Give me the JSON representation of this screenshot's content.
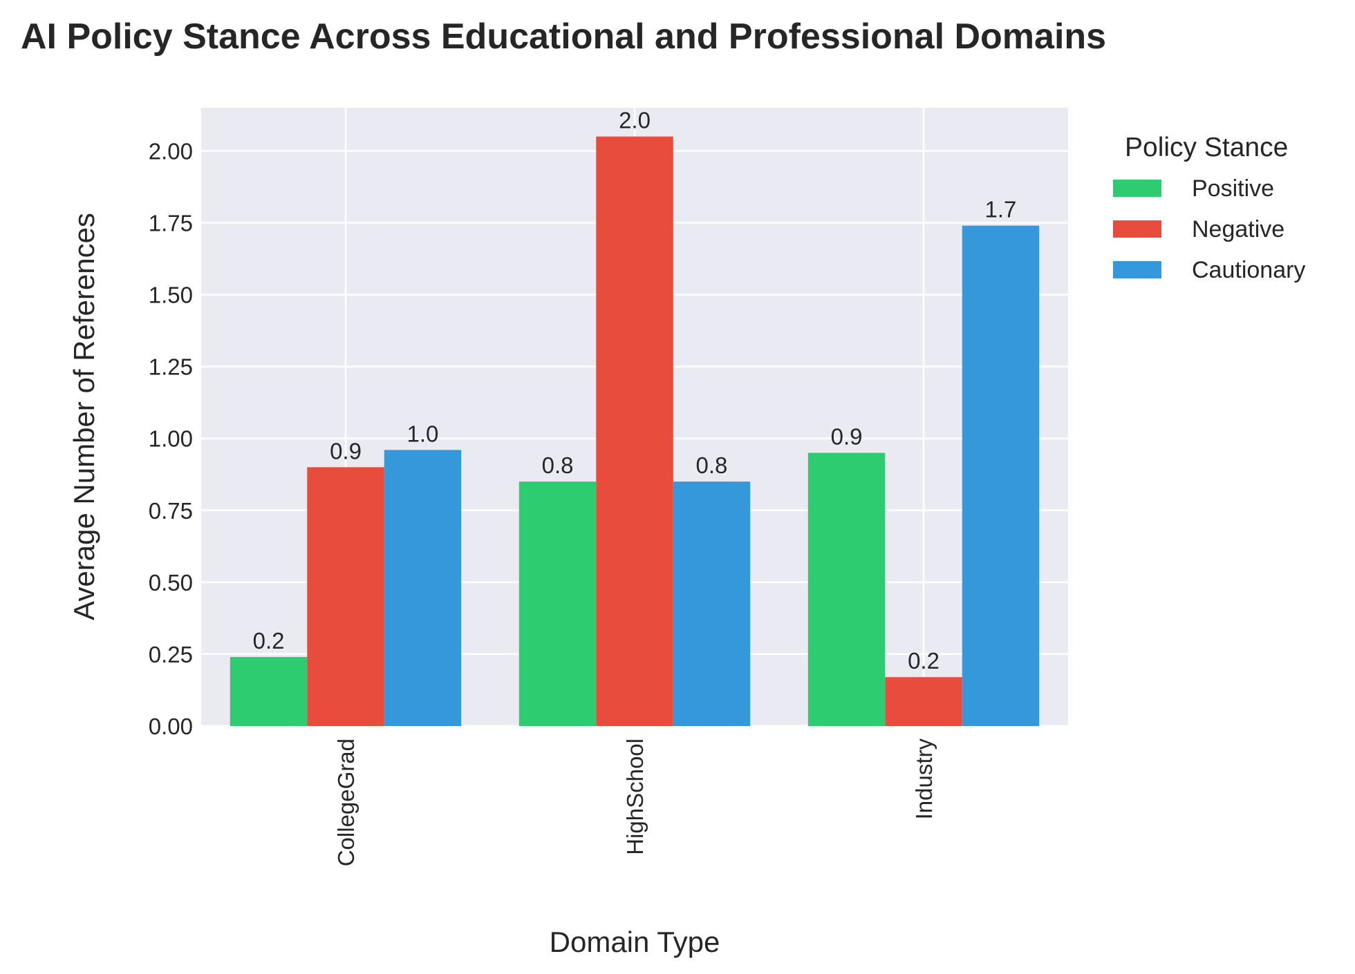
{
  "chart_data": {
    "type": "bar",
    "title": "AI Policy Stance Across Educational and Professional Domains",
    "xlabel": "Domain Type",
    "ylabel": "Average Number of References",
    "categories": [
      "CollegeGrad",
      "HighSchool",
      "Industry"
    ],
    "series": [
      {
        "name": "Positive",
        "color": "#2ecc71",
        "values": [
          0.24,
          0.85,
          0.95
        ],
        "labels": [
          "0.2",
          "0.8",
          "0.9"
        ]
      },
      {
        "name": "Negative",
        "color": "#e74c3c",
        "values": [
          0.9,
          2.05,
          0.17
        ],
        "labels": [
          "0.9",
          "2.0",
          "0.2"
        ]
      },
      {
        "name": "Cautionary",
        "color": "#3498db",
        "values": [
          0.96,
          0.85,
          1.74
        ],
        "labels": [
          "1.0",
          "0.8",
          "1.7"
        ]
      }
    ],
    "ylim": [
      0,
      2.15
    ],
    "yticks": [
      "0.00",
      "0.25",
      "0.50",
      "0.75",
      "1.00",
      "1.25",
      "1.50",
      "1.75",
      "2.00"
    ],
    "ytick_values": [
      0,
      0.25,
      0.5,
      0.75,
      1.0,
      1.25,
      1.5,
      1.75,
      2.0
    ],
    "grid": true,
    "legend": {
      "title": "Policy Stance",
      "placement": "outside-right-top"
    },
    "colors": {
      "background": "#eaeaf2",
      "grid": "#ffffff"
    }
  }
}
